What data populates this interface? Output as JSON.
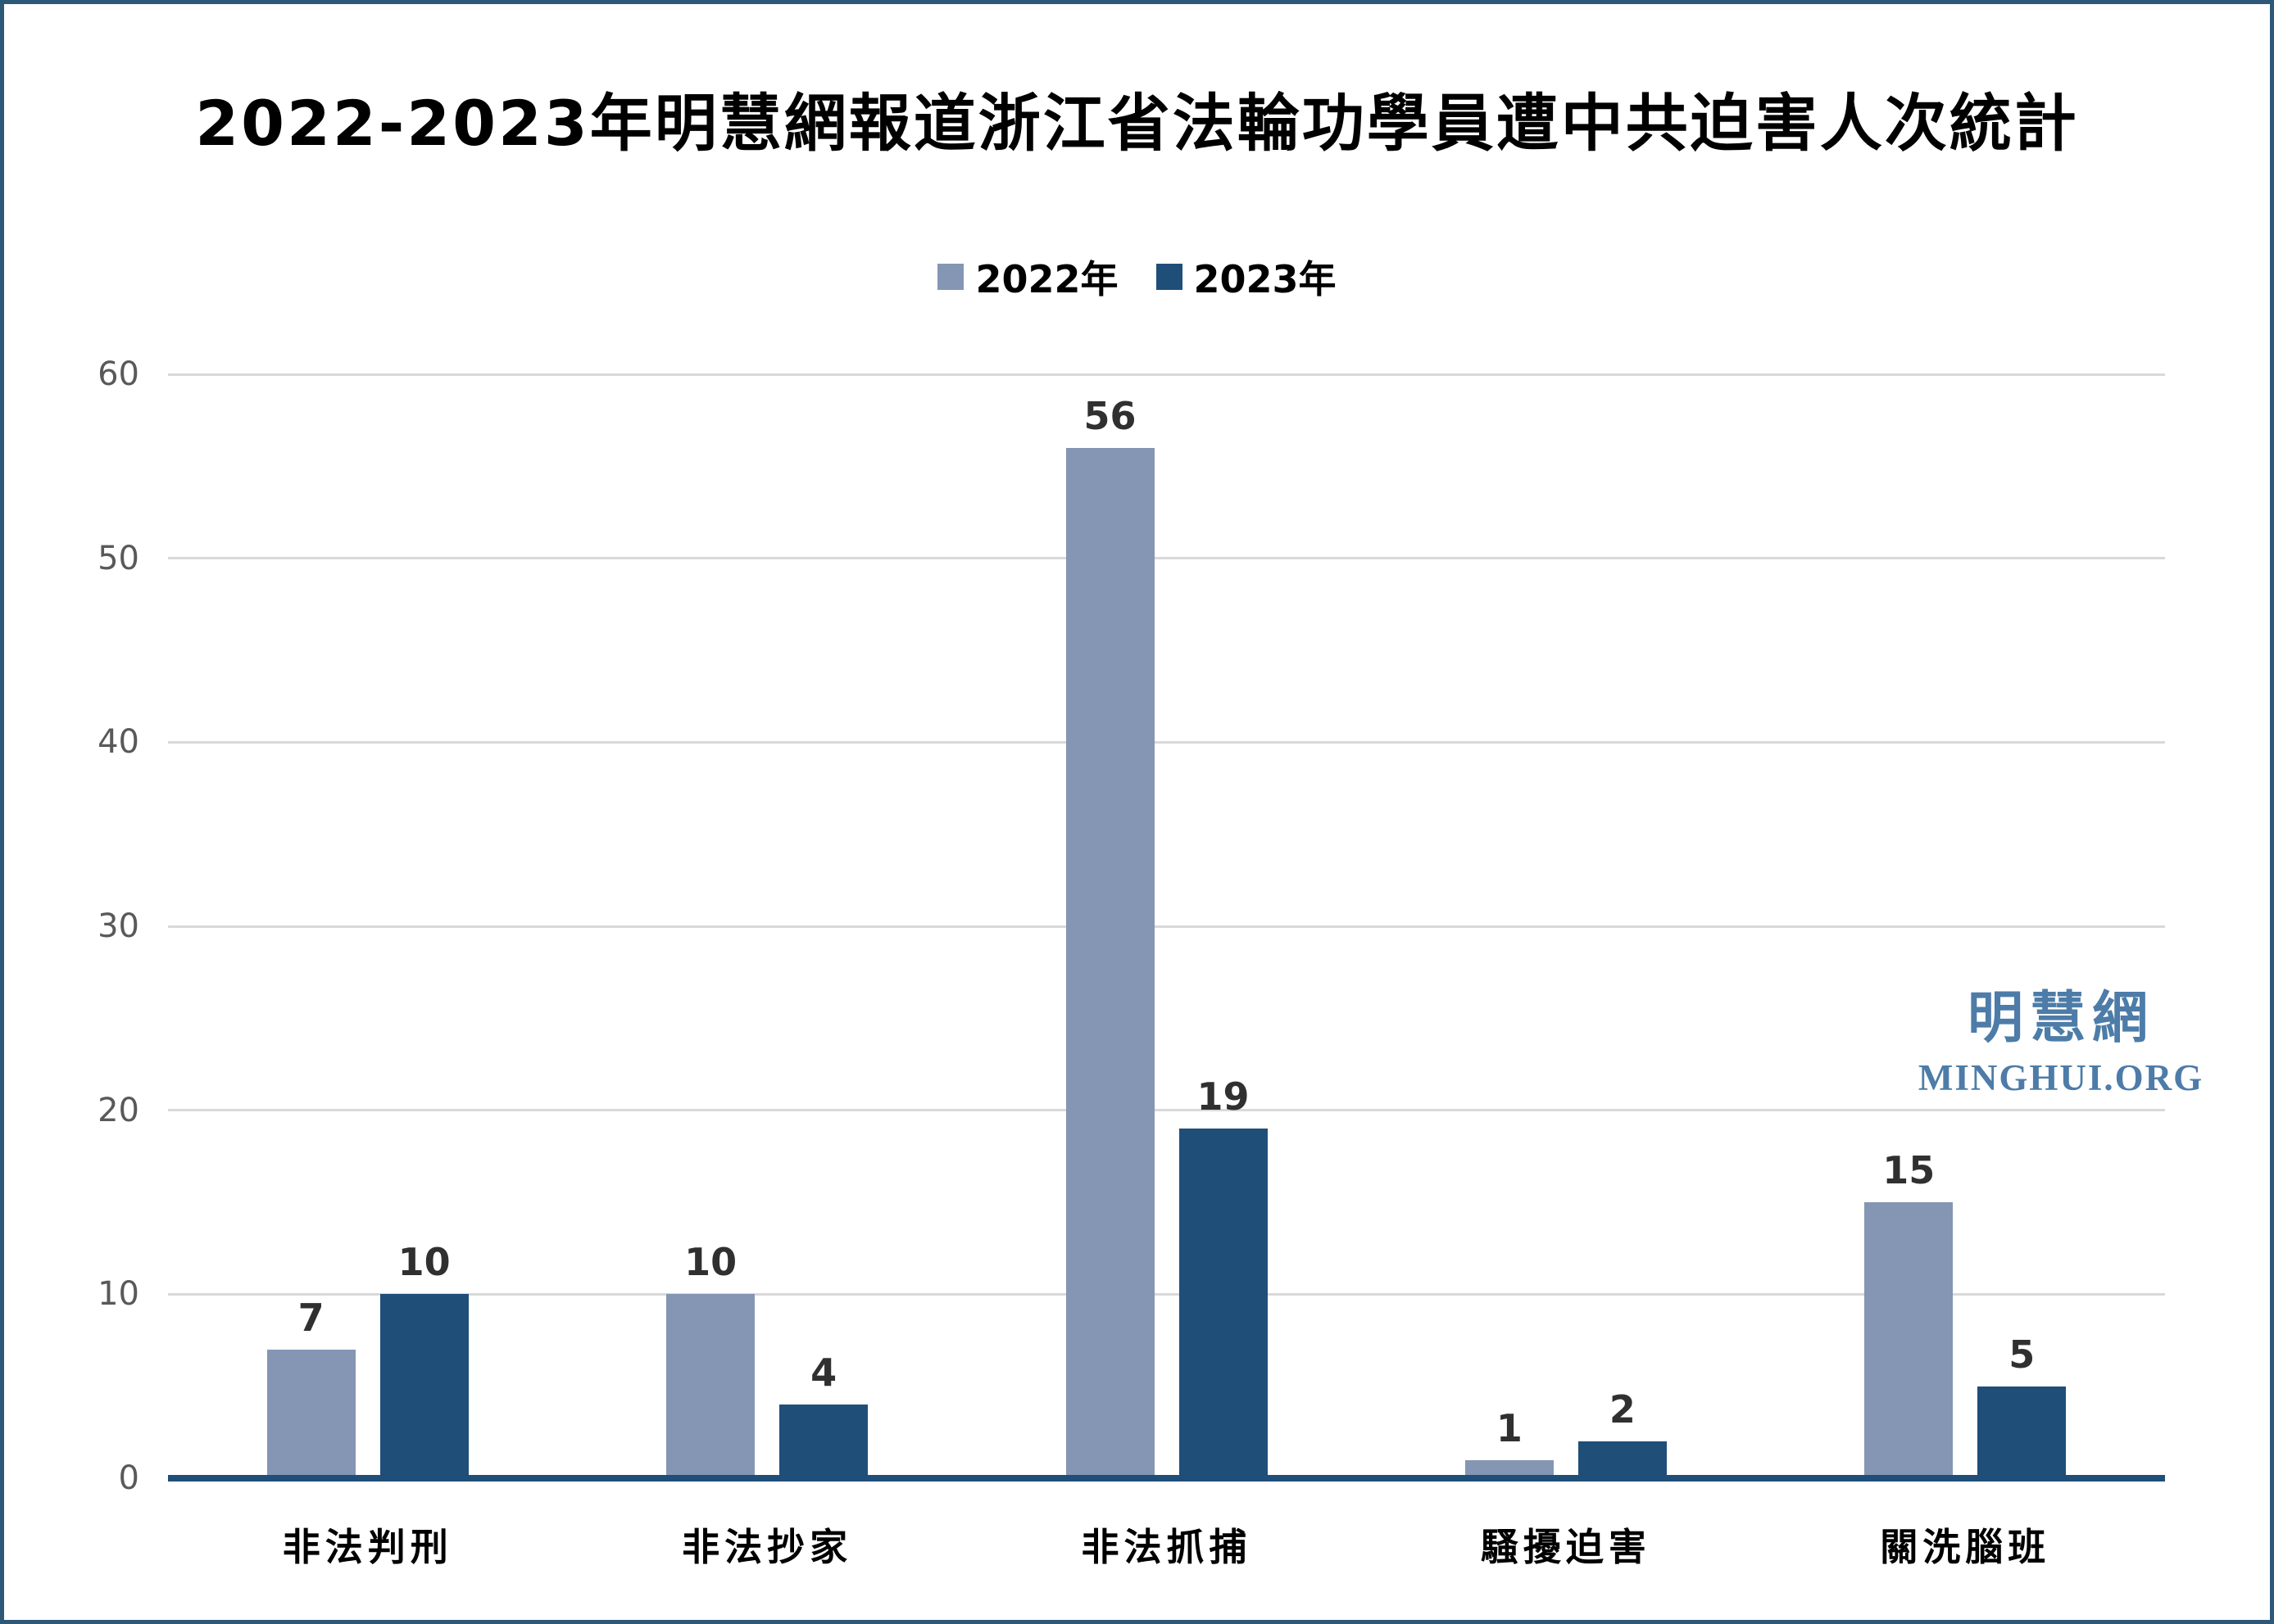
{
  "title": "2022-2023年明慧網報道浙江省法輪功學員遭中共迫害人次統計",
  "legend": {
    "items": [
      {
        "label": "2022年"
      },
      {
        "label": "2023年"
      }
    ]
  },
  "watermark": {
    "cn": "明慧網",
    "en": "MINGHUI.ORG"
  },
  "colors": {
    "series_2022": "#8496b3",
    "series_2023": "#1f4e79",
    "axis_line": "#1f4e79",
    "gridline": "#d9d9d9",
    "tick_label": "#595959",
    "value_label": "#303030",
    "category_label": "#000000",
    "border": "#2e5878",
    "watermark": "#4d7ca8"
  },
  "chart_data": {
    "type": "bar",
    "title": "2022-2023年明慧網報道浙江省法輪功學員遭中共迫害人次統計",
    "categories": [
      "非法判刑",
      "非法抄家",
      "非法抓捕",
      "騷擾迫害",
      "關洗腦班"
    ],
    "series": [
      {
        "name": "2022年",
        "color": "#8496b3",
        "values": [
          7,
          10,
          56,
          1,
          15
        ]
      },
      {
        "name": "2023年",
        "color": "#1f4e79",
        "values": [
          10,
          4,
          19,
          2,
          5
        ]
      }
    ],
    "xlabel": "",
    "ylabel": "",
    "ylim": [
      0,
      60
    ],
    "yticks": [
      0,
      10,
      20,
      30,
      40,
      50,
      60
    ],
    "grid": true,
    "legend_position": "top",
    "data_labels": true
  }
}
